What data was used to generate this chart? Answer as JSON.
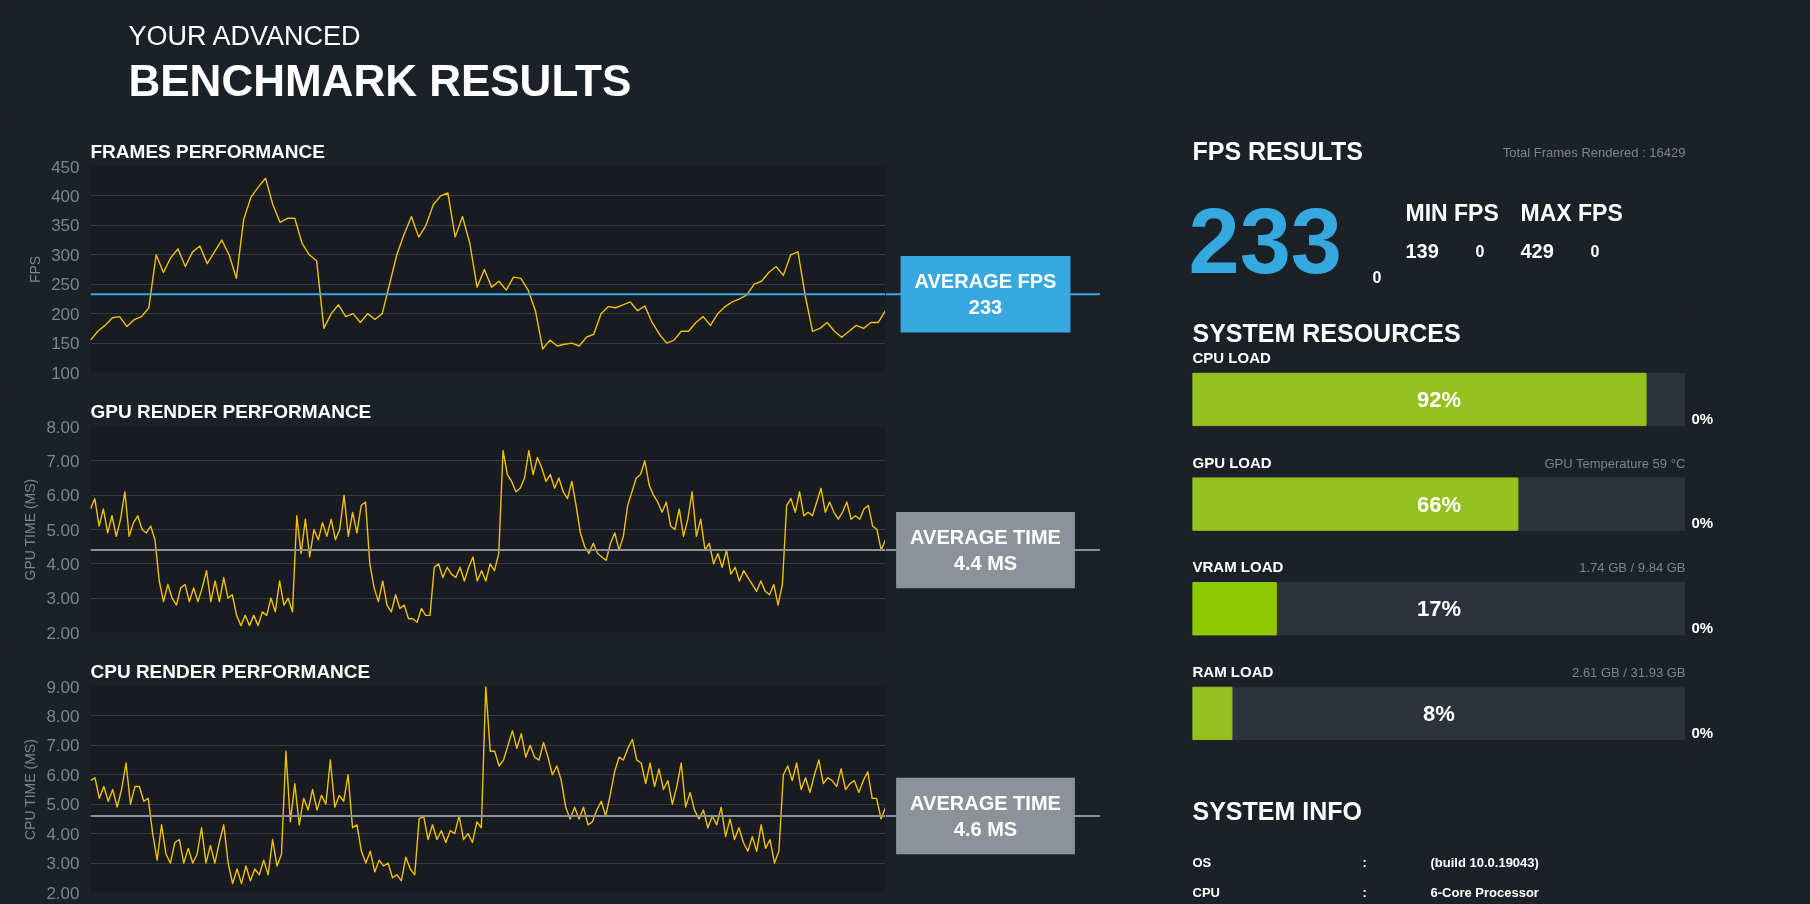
{
  "chart_data": [
    {
      "type": "other",
      "annotations": [
        "YOUR ADVANCED",
        "BENCHMARK RESULTS"
      ]
    },
    {
      "type": "line",
      "title": "FRAMES PERFORMANCE",
      "ylabel": "FPS",
      "ylim": [
        100,
        450
      ],
      "yticks": [
        100,
        150,
        200,
        250,
        300,
        350,
        400,
        450
      ],
      "grid": "y",
      "tick_labels": "y",
      "categories": [
        null,
        null,
        null,
        null,
        null,
        null,
        null,
        null,
        null,
        null,
        null,
        null,
        null,
        null,
        null,
        null,
        null,
        null,
        null,
        null,
        null,
        null,
        null,
        null,
        null,
        null,
        null,
        null,
        null,
        null,
        null,
        null,
        null,
        null,
        null,
        null,
        null,
        null,
        null,
        null,
        null,
        null,
        null,
        null,
        null,
        null,
        null,
        null,
        null,
        null,
        null,
        null,
        null,
        null,
        null,
        null,
        null,
        null,
        null,
        null,
        null,
        null,
        null,
        null,
        null,
        null,
        null,
        null,
        null,
        null,
        null,
        null,
        null,
        null,
        null,
        null,
        null,
        null,
        null,
        null,
        null,
        null,
        null,
        null,
        null,
        null,
        null,
        null,
        null,
        null,
        null,
        null,
        null,
        null,
        null,
        null,
        null,
        null,
        null,
        null,
        null,
        null,
        null,
        null,
        null,
        null,
        null,
        null,
        null,
        null
      ],
      "series": [
        {
          "color": "#f0c000",
          "values": [
            155,
            170,
            180,
            193,
            195,
            178,
            190,
            195,
            210,
            300,
            270,
            295,
            310,
            280,
            305,
            315,
            285,
            305,
            325,
            300,
            260,
            360,
            398,
            415,
            430,
            385,
            355,
            362,
            362,
            320,
            300,
            290,
            175,
            200,
            215,
            195,
            200,
            185,
            200,
            190,
            200,
            250,
            300,
            335,
            365,
            330,
            350,
            385,
            400,
            405,
            330,
            365,
            320,
            245,
            275,
            245,
            255,
            240,
            262,
            260,
            240,
            205,
            140,
            155,
            145,
            148,
            150,
            145,
            160,
            165,
            200,
            212,
            210,
            215,
            220,
            205,
            213,
            185,
            165,
            150,
            155,
            170,
            170,
            185,
            195,
            180,
            200,
            212,
            220,
            225,
            232,
            250,
            255,
            270,
            280,
            265,
            300,
            305,
            230,
            170,
            175,
            185,
            170,
            160,
            170,
            180,
            175,
            185,
            185,
            205
          ]
        }
      ],
      "ref_lines": [
        {
          "axis": "y",
          "value": 233,
          "label": "AVERAGE FPS",
          "color": "#37a8e0"
        }
      ],
      "annotations": [
        "233"
      ]
    },
    {
      "type": "line",
      "title": "GPU RENDER PERFORMANCE",
      "ylabel": "GPU TIME (MS)",
      "ylim": [
        2,
        8
      ],
      "yticks": [
        {
          "value": 2,
          "label": "2.00"
        },
        {
          "value": 3,
          "label": "3.00"
        },
        {
          "value": 4,
          "label": "4.00"
        },
        {
          "value": 5,
          "label": "5.00"
        },
        {
          "value": 6,
          "label": "6.00"
        },
        {
          "value": 7,
          "label": "7.00"
        },
        {
          "value": 8,
          "label": "8.00"
        }
      ],
      "grid": "y",
      "tick_labels": "y",
      "categories": [
        null,
        null,
        null,
        null,
        null,
        null,
        null,
        null,
        null,
        null,
        null,
        null,
        null,
        null,
        null,
        null,
        null,
        null,
        null,
        null,
        null,
        null,
        null,
        null,
        null,
        null,
        null,
        null,
        null,
        null,
        null,
        null,
        null,
        null,
        null,
        null,
        null,
        null,
        null,
        null,
        null,
        null,
        null,
        null,
        null,
        null,
        null,
        null,
        null,
        null,
        null,
        null,
        null,
        null,
        null,
        null,
        null,
        null,
        null,
        null,
        null,
        null,
        null,
        null,
        null,
        null,
        null,
        null,
        null,
        null,
        null,
        null,
        null,
        null,
        null,
        null,
        null,
        null,
        null,
        null,
        null,
        null,
        null,
        null,
        null,
        null,
        null,
        null,
        null,
        null,
        null,
        null,
        null,
        null,
        null,
        null,
        null,
        null,
        null,
        null,
        null,
        null,
        null,
        null,
        null,
        null,
        null,
        null,
        null,
        null,
        null,
        null,
        null,
        null,
        null,
        null,
        null,
        null,
        null,
        null,
        null,
        null,
        null,
        null,
        null,
        null,
        null,
        null,
        null,
        null,
        null,
        null,
        null,
        null,
        null,
        null,
        null,
        null,
        null,
        null,
        null,
        null,
        null,
        null,
        null,
        null,
        null,
        null,
        null,
        null,
        null,
        null,
        null,
        null,
        null,
        null,
        null,
        null,
        null,
        null,
        null,
        null,
        null,
        null,
        null,
        null,
        null,
        null,
        null,
        null,
        null,
        null,
        null,
        null,
        null,
        null,
        null,
        null,
        null,
        null,
        null,
        null,
        null,
        null,
        null,
        null
      ],
      "series": [
        {
          "color": "#f0c000",
          "values": [
            5.6,
            5.9,
            5.1,
            5.6,
            4.9,
            5.4,
            4.8,
            5.3,
            6.1,
            4.8,
            5.2,
            5.4,
            5.0,
            4.9,
            5.1,
            4.7,
            3.5,
            2.9,
            3.4,
            3.0,
            2.8,
            3.3,
            3.4,
            2.9,
            3.3,
            2.9,
            3.3,
            3.8,
            2.9,
            3.5,
            2.9,
            3.6,
            3.0,
            3.1,
            2.5,
            2.2,
            2.5,
            2.2,
            2.5,
            2.2,
            2.6,
            2.5,
            3.0,
            2.6,
            3.5,
            2.8,
            3.0,
            2.6,
            5.4,
            4.3,
            5.3,
            4.2,
            5.0,
            4.7,
            5.2,
            4.8,
            5.3,
            4.7,
            5.0,
            6.0,
            4.8,
            5.5,
            4.9,
            5.7,
            5.8,
            4.0,
            3.3,
            2.9,
            3.5,
            2.8,
            2.6,
            3.1,
            2.7,
            2.8,
            2.4,
            2.4,
            2.3,
            2.7,
            2.5,
            2.5,
            3.9,
            4.0,
            3.6,
            3.9,
            3.7,
            3.6,
            3.9,
            3.5,
            3.9,
            4.2,
            3.5,
            3.8,
            3.5,
            4.0,
            3.8,
            4.3,
            7.3,
            6.6,
            6.4,
            6.1,
            6.2,
            6.5,
            7.3,
            6.6,
            7.1,
            6.8,
            6.4,
            6.6,
            6.2,
            6.5,
            6.1,
            5.9,
            6.4,
            5.7,
            4.9,
            4.5,
            4.3,
            4.6,
            4.3,
            4.2,
            4.1,
            4.6,
            4.9,
            4.4,
            4.8,
            5.7,
            6.1,
            6.5,
            6.6,
            7.0,
            6.3,
            6.0,
            5.8,
            5.5,
            5.8,
            5.1,
            5.0,
            5.6,
            4.8,
            5.3,
            6.1,
            4.8,
            5.3,
            4.4,
            4.6,
            4.0,
            4.3,
            3.9,
            4.4,
            3.7,
            3.9,
            3.5,
            3.8,
            3.6,
            3.4,
            3.2,
            3.5,
            3.2,
            3.1,
            3.4,
            2.8,
            3.4,
            5.7,
            5.9,
            5.5,
            6.1,
            5.4,
            5.5,
            5.4,
            5.8,
            6.2,
            5.5,
            5.8,
            5.5,
            5.3,
            5.5,
            5.8,
            5.3,
            5.4,
            5.3,
            5.6,
            5.7,
            5.1,
            5.0,
            4.4,
            4.7
          ]
        }
      ],
      "ref_lines": [
        {
          "axis": "y",
          "value": 4.4,
          "label": "AVERAGE TIME",
          "color": "#8d9199"
        }
      ],
      "annotations": [
        "4.4",
        "MS"
      ]
    },
    {
      "type": "line",
      "title": "CPU RENDER PERFORMANCE",
      "ylabel": "CPU TIME (MS)",
      "ylim": [
        2,
        9
      ],
      "yticks": [
        {
          "value": 2,
          "label": "2.00"
        },
        {
          "value": 3,
          "label": "3.00"
        },
        {
          "value": 4,
          "label": "4.00"
        },
        {
          "value": 5,
          "label": "5.00"
        },
        {
          "value": 6,
          "label": "6.00"
        },
        {
          "value": 7,
          "label": "7.00"
        },
        {
          "value": 8,
          "label": "8.00"
        },
        {
          "value": 9,
          "label": "9.00"
        }
      ],
      "grid": "y",
      "tick_labels": "y",
      "categories": [
        null,
        null,
        null,
        null,
        null,
        null,
        null,
        null,
        null,
        null,
        null,
        null,
        null,
        null,
        null,
        null,
        null,
        null,
        null,
        null,
        null,
        null,
        null,
        null,
        null,
        null,
        null,
        null,
        null,
        null,
        null,
        null,
        null,
        null,
        null,
        null,
        null,
        null,
        null,
        null,
        null,
        null,
        null,
        null,
        null,
        null,
        null,
        null,
        null,
        null,
        null,
        null,
        null,
        null,
        null,
        null,
        null,
        null,
        null,
        null,
        null,
        null,
        null,
        null,
        null,
        null,
        null,
        null,
        null,
        null,
        null,
        null,
        null,
        null,
        null,
        null,
        null,
        null,
        null,
        null,
        null,
        null,
        null,
        null,
        null,
        null,
        null,
        null,
        null,
        null,
        null,
        null,
        null,
        null,
        null,
        null,
        null,
        null,
        null,
        null,
        null,
        null,
        null,
        null,
        null,
        null,
        null,
        null,
        null,
        null,
        null,
        null,
        null,
        null,
        null,
        null,
        null,
        null,
        null,
        null,
        null,
        null,
        null,
        null,
        null,
        null,
        null,
        null,
        null,
        null,
        null,
        null,
        null,
        null,
        null,
        null,
        null,
        null,
        null,
        null,
        null,
        null,
        null,
        null,
        null,
        null,
        null,
        null,
        null,
        null,
        null,
        null,
        null,
        null,
        null,
        null,
        null,
        null,
        null,
        null,
        null,
        null,
        null,
        null,
        null,
        null,
        null,
        null,
        null,
        null,
        null,
        null,
        null,
        null,
        null,
        null,
        null,
        null,
        null,
        null
      ],
      "series": [
        {
          "color": "#f0c000",
          "values": [
            5.8,
            5.9,
            5.2,
            5.6,
            5.1,
            5.5,
            4.9,
            5.5,
            6.4,
            5.0,
            5.6,
            5.6,
            5.1,
            5.2,
            4.0,
            3.1,
            4.3,
            3.3,
            3.0,
            3.7,
            3.8,
            3.0,
            3.5,
            3.0,
            3.3,
            4.2,
            3.0,
            3.6,
            3.0,
            3.7,
            4.3,
            3.0,
            2.3,
            2.8,
            2.3,
            2.9,
            2.4,
            2.8,
            2.6,
            3.1,
            2.6,
            3.8,
            2.9,
            3.3,
            6.8,
            4.4,
            5.7,
            4.3,
            5.2,
            4.8,
            5.5,
            4.8,
            5.3,
            5.0,
            6.5,
            4.9,
            5.3,
            5.1,
            6.0,
            4.2,
            4.3,
            3.4,
            3.0,
            3.4,
            2.7,
            3.1,
            2.9,
            3.0,
            2.5,
            2.6,
            2.4,
            3.2,
            2.8,
            2.6,
            4.5,
            4.6,
            3.8,
            4.3,
            3.8,
            4.1,
            3.7,
            4.1,
            4.0,
            4.6,
            3.8,
            4.0,
            3.7,
            4.4,
            4.2,
            9.0,
            6.8,
            6.8,
            6.3,
            6.5,
            7.0,
            7.5,
            6.9,
            7.4,
            6.6,
            7.0,
            6.6,
            6.5,
            7.1,
            6.6,
            6.0,
            6.3,
            5.8,
            4.9,
            4.5,
            4.9,
            4.5,
            4.9,
            4.3,
            4.4,
            4.8,
            5.1,
            4.6,
            5.3,
            6.1,
            6.6,
            6.5,
            6.9,
            7.2,
            6.5,
            6.4,
            5.7,
            6.4,
            5.6,
            6.2,
            5.5,
            5.8,
            5.0,
            5.6,
            6.4,
            4.9,
            5.4,
            4.8,
            4.5,
            4.8,
            4.2,
            4.6,
            4.3,
            4.9,
            3.9,
            4.5,
            3.8,
            4.2,
            3.7,
            3.4,
            3.9,
            3.4,
            4.3,
            3.5,
            3.8,
            3.0,
            3.4,
            6.0,
            6.3,
            5.8,
            6.4,
            5.5,
            5.9,
            5.4,
            6.0,
            6.5,
            5.7,
            5.9,
            5.8,
            5.6,
            6.2,
            5.5,
            5.7,
            5.8,
            5.4,
            5.8,
            6.1,
            5.2,
            5.2,
            4.5,
            4.9
          ]
        }
      ],
      "ref_lines": [
        {
          "axis": "y",
          "value": 4.6,
          "label": "AVERAGE TIME",
          "color": "#8d9199"
        }
      ],
      "annotations": [
        "4.6",
        "MS"
      ]
    },
    {
      "type": "other",
      "title": "FPS RESULTS",
      "subtitle": "Total Frames Rendered : 16429",
      "annotations": [
        "233",
        "0",
        "MIN FPS",
        "139",
        "0",
        "MAX FPS",
        "429",
        "0"
      ]
    },
    {
      "type": "bar",
      "title": "SYSTEM RESOURCES",
      "orientation": "horizontal",
      "categories": [
        "CPU LOAD",
        "GPU LOAD",
        "VRAM LOAD",
        "RAM LOAD"
      ],
      "values": [
        92,
        66,
        17,
        8
      ],
      "colors": [
        "#95c11f",
        "#95c11f",
        "#8ec800",
        "#95c11f"
      ],
      "xlim": [
        0,
        100
      ],
      "tick_labels": false,
      "grid": false,
      "value_labels": [
        "92%",
        "66%",
        "17%",
        "8%"
      ],
      "annotations": [
        "GPU Temperature 59 °C",
        "1.74 GB / 9.84 GB",
        "2.61 GB / 31.93 GB",
        "0%",
        "0%",
        "0%",
        "0%"
      ]
    },
    {
      "type": "other",
      "title": "SYSTEM INFO",
      "annotations": [
        "OS",
        ":",
        "(build 10.0.19043)",
        "CPU",
        ":",
        "6-Core Processor"
      ]
    }
  ]
}
